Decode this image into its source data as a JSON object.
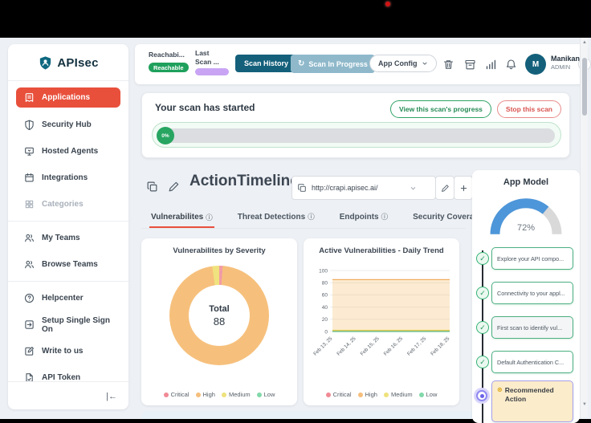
{
  "theme": {
    "accent_red": "#E8503C",
    "teal_dark": "#14607B",
    "teal_muted": "#8FB9CB",
    "green": "#1FA05C",
    "purple": "#C9A4F4",
    "gauge_blue": "#4D96D9"
  },
  "icons": {
    "info": "ⓘ",
    "check": "✓",
    "spinner": "↻",
    "collapse": "|←",
    "arrow_up": "▲",
    "arrow_down": "▼",
    "profile_chevron": "›",
    "recommended": "⊛"
  },
  "sidebar": {
    "logo": "APIsec",
    "items": [
      {
        "label": "Applications"
      },
      {
        "label": "Security Hub"
      },
      {
        "label": "Hosted Agents"
      },
      {
        "label": "Integrations"
      },
      {
        "label": "Categories"
      },
      {
        "label": "My Teams"
      },
      {
        "label": "Browse Teams"
      },
      {
        "label": "Helpcenter"
      },
      {
        "label": "Setup Single Sign On"
      },
      {
        "label": "Write to us"
      },
      {
        "label": "API Token"
      }
    ]
  },
  "header": {
    "reachability_label": "Reachabi...",
    "reachability_value": "Reachable",
    "last_scan_line1": "Last",
    "last_scan_line2": "Scan ...",
    "scan_history": "Scan History",
    "scan_in_progress": "Scan In Progress",
    "app_config": "App Config",
    "user_name": "Manikanta",
    "user_role": "ADMIN",
    "avatar_initial": "M"
  },
  "banner": {
    "title": "Your scan has started",
    "view_progress": "View this scan's progress",
    "stop_scan": "Stop this scan",
    "progress_percent": "0%"
  },
  "toolbar": {
    "title": "ActionTimeline...",
    "url": "http://crapi.apisec.ai/"
  },
  "tabs": [
    {
      "label": "Vulnerabilites"
    },
    {
      "label": "Threat Detections"
    },
    {
      "label": "Endpoints"
    },
    {
      "label": "Security Coverage"
    }
  ],
  "severity_legend": [
    {
      "label": "Critical",
      "color": "#F08A95"
    },
    {
      "label": "High",
      "color": "#F5BE7B"
    },
    {
      "label": "Medium",
      "color": "#EFE27C"
    },
    {
      "label": "Low",
      "color": "#82D8A9"
    }
  ],
  "app_model_timeline": {
    "items": [
      {
        "label": "Explore your API compo..."
      },
      {
        "label": "Connectivity to your appl..."
      },
      {
        "label": "First scan to identify vul..."
      },
      {
        "label": "Default Authentication C..."
      },
      {
        "label": "Recommended Action"
      }
    ]
  },
  "chart_data": [
    {
      "type": "pie",
      "title": "Vulnerabilites by Severity",
      "categories": [
        "Critical",
        "High",
        "Medium",
        "Low"
      ],
      "values": [
        1,
        85,
        2,
        0
      ],
      "colors": [
        "#F29CA6",
        "#F6C07C",
        "#F0E27E",
        "#7ED6A5"
      ],
      "center_label": "Total",
      "center_value": "88",
      "legend_position": "bottom"
    },
    {
      "type": "area",
      "title": "Active Vulnerabilities - Daily Trend",
      "x": [
        "Feb 13, 25",
        "Feb 14, 25",
        "Feb 15, 25",
        "Feb 16, 25",
        "Feb 17, 25",
        "Feb 18, 25"
      ],
      "series": [
        {
          "name": "High",
          "values": [
            85,
            85,
            85,
            85,
            85,
            85
          ],
          "color": "#F0AC62",
          "fill": "rgba(246,197,125,0.35)"
        },
        {
          "name": "Critical",
          "values": [
            1,
            1,
            1,
            1,
            1,
            1
          ],
          "color": "#F08A95"
        },
        {
          "name": "Medium",
          "values": [
            2,
            2,
            2,
            2,
            2,
            2
          ],
          "color": "#E3D24E"
        },
        {
          "name": "Low",
          "values": [
            0,
            0,
            0,
            0,
            0,
            0
          ],
          "color": "#57C785"
        }
      ],
      "ylim": [
        0,
        100
      ],
      "yticks": [
        0,
        20,
        40,
        60,
        80,
        100
      ],
      "grid": true,
      "legend_position": "bottom"
    },
    {
      "type": "gauge",
      "title": "App Model",
      "value": 72,
      "label": "72%",
      "color": "#4D96D9",
      "track_color": "#D9D9D9"
    }
  ]
}
